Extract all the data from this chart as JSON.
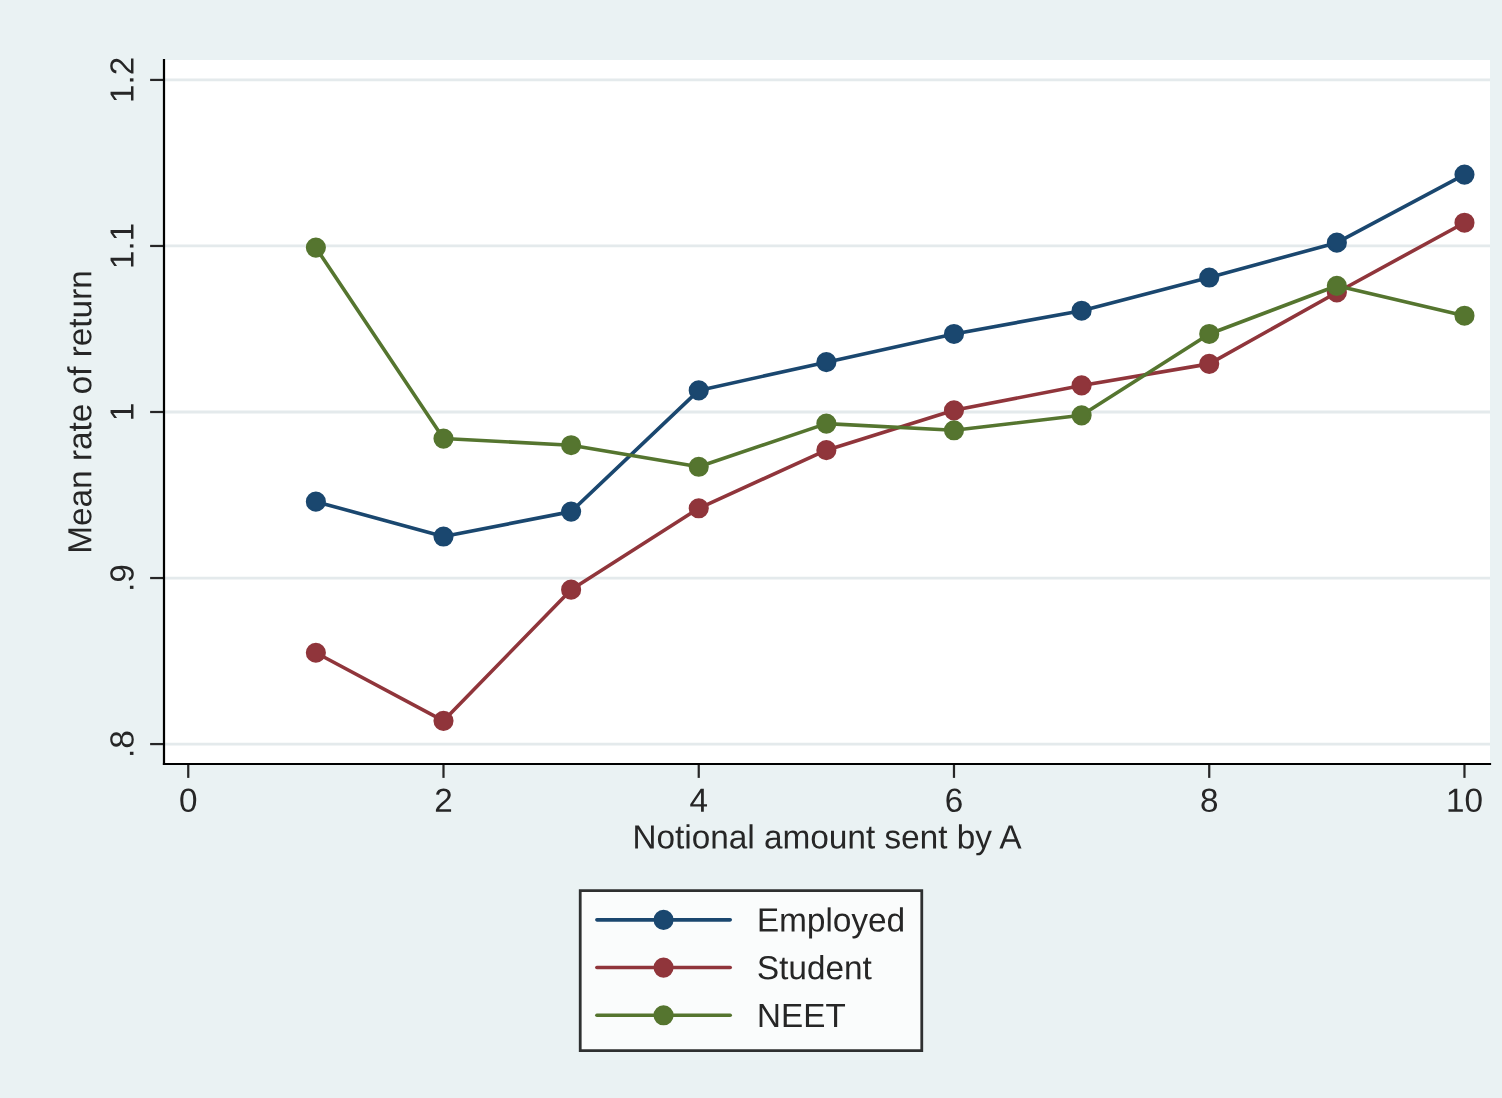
{
  "chart_data": {
    "type": "line",
    "xlabel": "Notional amount sent by A",
    "ylabel": "Mean rate of return",
    "x": [
      1,
      2,
      3,
      4,
      5,
      6,
      7,
      8,
      9,
      10
    ],
    "series": [
      {
        "name": "Employed",
        "color": "#1a476f",
        "values": [
          0.946,
          0.925,
          0.94,
          1.013,
          1.03,
          1.047,
          1.061,
          1.081,
          1.102,
          1.143
        ]
      },
      {
        "name": "Student",
        "color": "#90353b",
        "values": [
          0.855,
          0.814,
          0.893,
          0.942,
          0.977,
          1.001,
          1.016,
          1.029,
          1.072,
          1.114
        ]
      },
      {
        "name": "NEET",
        "color": "#55752f",
        "values": [
          1.099,
          0.984,
          0.98,
          0.967,
          0.993,
          0.989,
          0.998,
          1.047,
          1.076,
          1.058
        ]
      }
    ],
    "xlim": [
      -0.19,
      10.2
    ],
    "ylim": [
      0.788,
      1.212
    ],
    "xticks": [
      0,
      2,
      4,
      6,
      8,
      10
    ],
    "yticks": [
      {
        "value": 0.8,
        "label": ".8"
      },
      {
        "value": 0.9,
        "label": ".9"
      },
      {
        "value": 1,
        "label": "1"
      },
      {
        "value": 1.1,
        "label": "1.1"
      },
      {
        "value": 1.2,
        "label": "1.2"
      }
    ],
    "grid": "y",
    "legend": "bottom",
    "marker": "circle",
    "line_style": "solid"
  }
}
